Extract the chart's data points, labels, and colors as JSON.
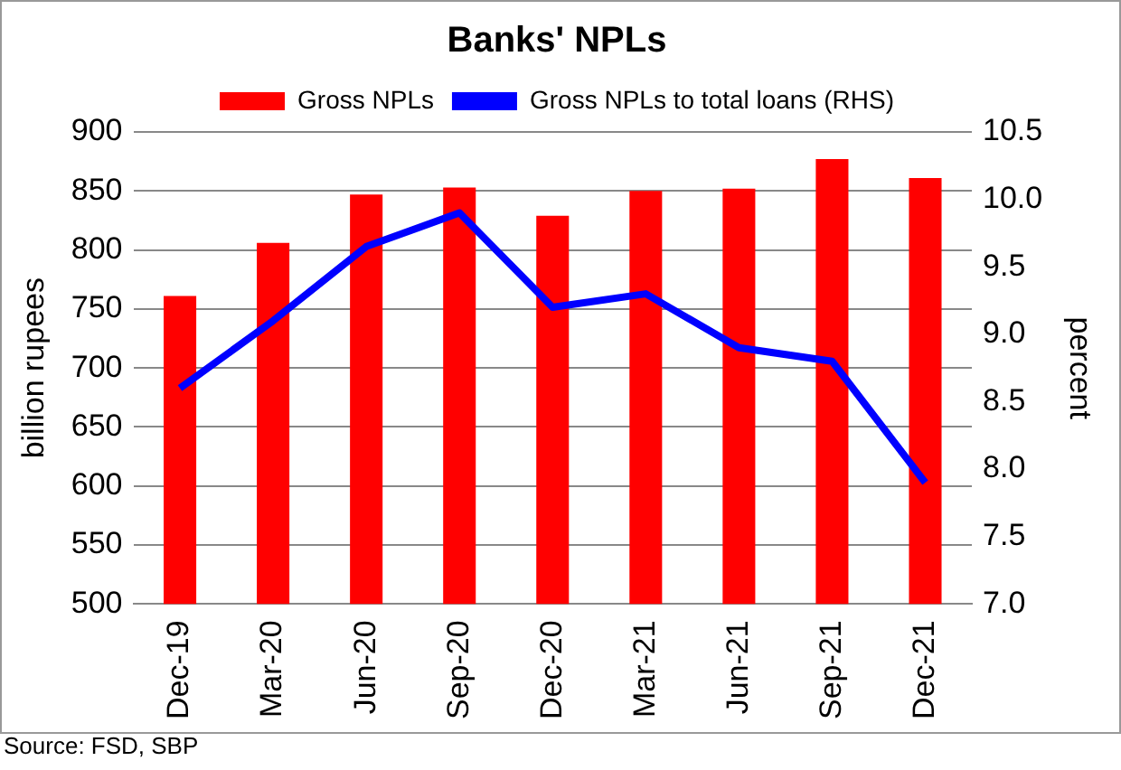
{
  "chart_data": {
    "type": "bar",
    "title": "Banks' NPLs",
    "ylabel": "billion rupees",
    "y2label": "percent",
    "categories": [
      "Dec-19",
      "Mar-20",
      "Jun-20",
      "Sep-20",
      "Dec-20",
      "Mar-21",
      "Jun-21",
      "Sep-21",
      "Dec-21"
    ],
    "series": [
      {
        "name": "Gross NPLs",
        "color": "#ff0000",
        "values": [
          761,
          806,
          847,
          853,
          829,
          850,
          852,
          877,
          861
        ]
      },
      {
        "name": "Gross NPLs to total loans (RHS)",
        "type": "line",
        "axis": "y2",
        "color": "#0000ff",
        "values": [
          8.6,
          9.1,
          9.65,
          9.9,
          9.2,
          9.3,
          8.9,
          8.8,
          7.9
        ]
      }
    ],
    "ylim": [
      500,
      900
    ],
    "yticks": [
      500,
      550,
      600,
      650,
      700,
      750,
      800,
      850,
      900
    ],
    "y2lim": [
      7.0,
      10.5
    ],
    "y2ticks": [
      {
        "value": 7,
        "label": "7.0"
      },
      {
        "value": 7.5,
        "label": "7.5"
      },
      {
        "value": 8,
        "label": "8.0"
      },
      {
        "value": 8.5,
        "label": "8.5"
      },
      {
        "value": 9,
        "label": "9.0"
      },
      {
        "value": 9.5,
        "label": "9.5"
      },
      {
        "value": 10,
        "label": "10.0"
      },
      {
        "value": 10.5,
        "label": "10.5"
      }
    ],
    "grid": "y",
    "legend": "top",
    "marker": "none",
    "annotations": [
      "Source: FSD, SBP"
    ]
  }
}
